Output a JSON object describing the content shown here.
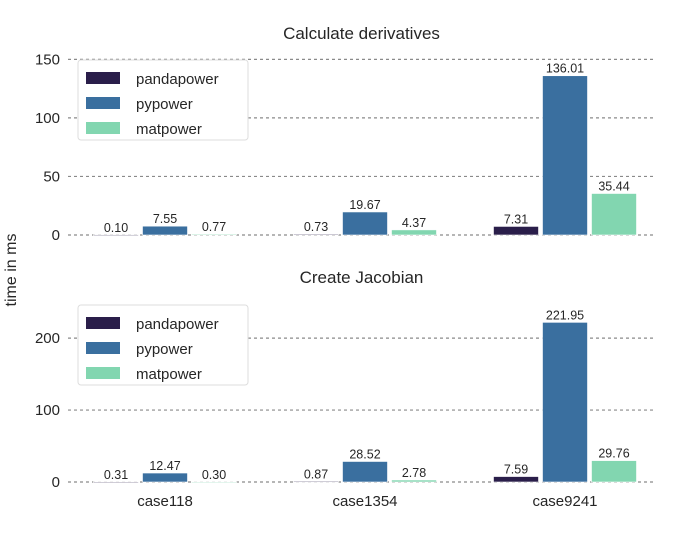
{
  "chart_data": [
    {
      "type": "bar",
      "title": "Calculate derivatives",
      "xlabel": "",
      "ylabel": "time in ms",
      "categories": [
        "case118",
        "case1354",
        "case9241"
      ],
      "ylim": [
        0,
        158
      ],
      "yticks": [
        0,
        50,
        100,
        150
      ],
      "grid": "horizontal dashed",
      "legend_position": "top-left",
      "series": [
        {
          "name": "pandapower",
          "color": "#2a1e4a",
          "values": [
            0.1,
            0.73,
            7.31
          ],
          "labels": [
            "0.10",
            "0.73",
            "7.31"
          ]
        },
        {
          "name": "pypower",
          "color": "#3a6f9f",
          "values": [
            7.55,
            19.67,
            136.01
          ],
          "labels": [
            "7.55",
            "19.67",
            "136.01"
          ]
        },
        {
          "name": "matpower",
          "color": "#82d6b0",
          "values": [
            0.77,
            4.37,
            35.44
          ],
          "labels": [
            "0.77",
            "4.37",
            "35.44"
          ]
        }
      ]
    },
    {
      "type": "bar",
      "title": "Create Jacobian",
      "xlabel": "",
      "ylabel": "time in ms",
      "categories": [
        "case118",
        "case1354",
        "case9241"
      ],
      "ylim": [
        0,
        260
      ],
      "yticks": [
        0,
        100,
        200
      ],
      "grid": "horizontal dashed",
      "legend_position": "top-left",
      "series": [
        {
          "name": "pandapower",
          "color": "#2a1e4a",
          "values": [
            0.31,
            0.87,
            7.59
          ],
          "labels": [
            "0.31",
            "0.87",
            "7.59"
          ]
        },
        {
          "name": "pypower",
          "color": "#3a6f9f",
          "values": [
            12.47,
            28.52,
            221.95
          ],
          "labels": [
            "12.47",
            "28.52",
            "221.95"
          ]
        },
        {
          "name": "matpower",
          "color": "#82d6b0",
          "values": [
            0.3,
            2.78,
            29.76
          ],
          "labels": [
            "0.30",
            "2.78",
            "29.76"
          ]
        }
      ]
    }
  ],
  "shared_ylabel": "time in ms"
}
